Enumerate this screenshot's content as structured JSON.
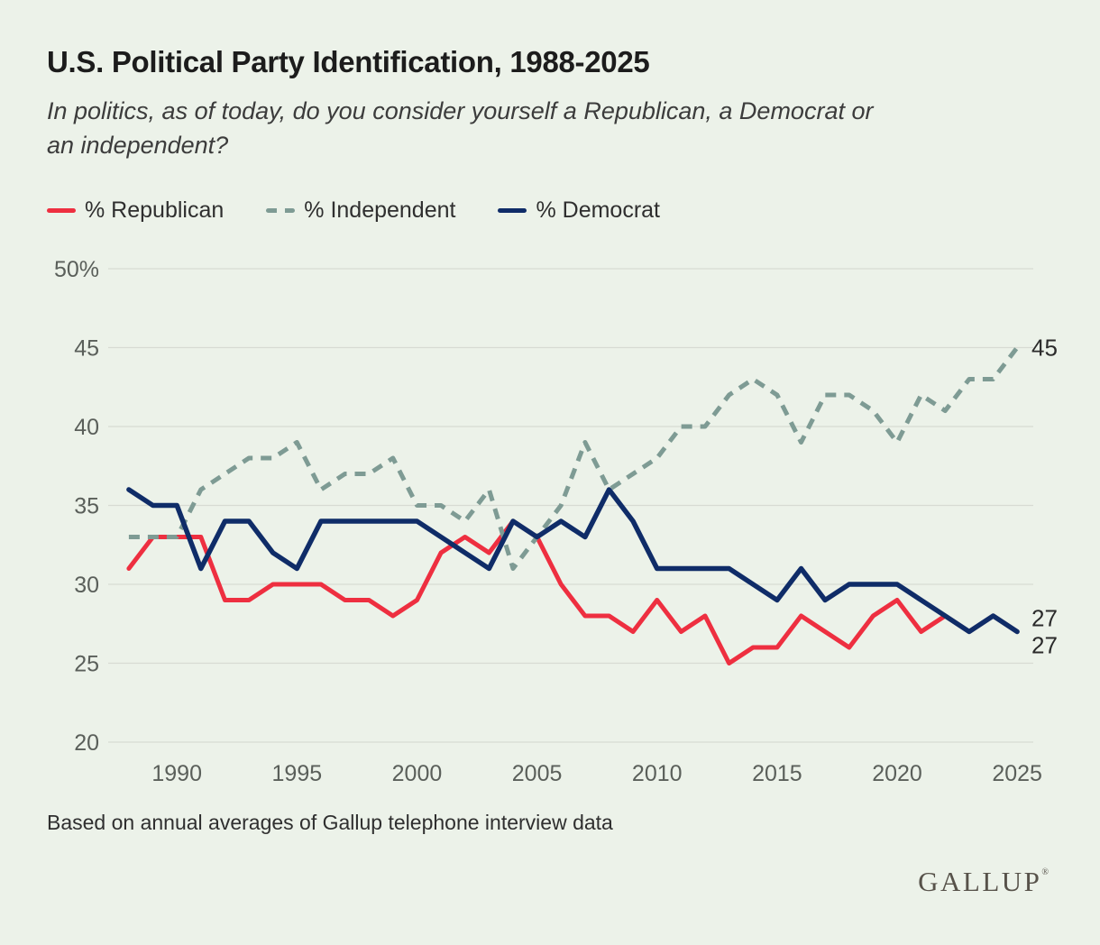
{
  "title": "U.S. Political Party Identification, 1988-2025",
  "subtitle_lines": [
    "In politics, as of today, do you consider yourself a Republican, a Democrat or",
    "an independent?"
  ],
  "legend": [
    {
      "id": "republican",
      "label": "% Republican",
      "style": "solid"
    },
    {
      "id": "independent",
      "label": "% Independent",
      "style": "dashed"
    },
    {
      "id": "democrat",
      "label": "% Democrat",
      "style": "solid"
    }
  ],
  "footer": "Based on annual averages of Gallup telephone interview data",
  "logo_text": "GALLUP",
  "logo_mark": "®",
  "colors": {
    "background": "#ecf2e9",
    "grid": "#d7dbd3",
    "tick_text": "#5a5f5a",
    "title_text": "#1c1c1c",
    "subtitle_text": "#3c3c3c",
    "legend_text": "#2f2f2f",
    "end_label_text": "#2b2b2b",
    "footer_text": "#2f2f2f",
    "logo_text": "#57524a",
    "republican": "#ee2f40",
    "independent": "#7e9b94",
    "democrat": "#0f2c68"
  },
  "chart_data": {
    "type": "line",
    "title": "U.S. Political Party Identification, 1988-2025",
    "xlabel": "",
    "ylabel": "%",
    "x": [
      1988,
      1989,
      1990,
      1991,
      1992,
      1993,
      1994,
      1995,
      1996,
      1997,
      1998,
      1999,
      2000,
      2001,
      2002,
      2003,
      2004,
      2005,
      2006,
      2007,
      2008,
      2009,
      2010,
      2011,
      2012,
      2013,
      2014,
      2015,
      2016,
      2017,
      2018,
      2019,
      2020,
      2021,
      2022,
      2023,
      2024,
      2025
    ],
    "series": [
      {
        "id": "republican",
        "name": "% Republican",
        "dash": null,
        "width": 5,
        "values": [
          31,
          33,
          33,
          33,
          29,
          29,
          30,
          30,
          30,
          29,
          29,
          28,
          29,
          32,
          33,
          32,
          34,
          33,
          30,
          28,
          28,
          27,
          29,
          27,
          28,
          25,
          26,
          26,
          28,
          27,
          26,
          28,
          29,
          27,
          28,
          27,
          28,
          27
        ],
        "end_label": "27",
        "end_label_dy": 15
      },
      {
        "id": "independent",
        "name": "% Independent",
        "dash": [
          12,
          9
        ],
        "width": 5,
        "values": [
          33,
          33,
          33,
          36,
          37,
          38,
          38,
          39,
          36,
          37,
          37,
          38,
          35,
          35,
          34,
          36,
          31,
          33,
          35,
          39,
          36,
          37,
          38,
          40,
          40,
          42,
          43,
          42,
          39,
          42,
          42,
          41,
          39,
          42,
          41,
          43,
          43,
          45
        ],
        "end_label": "45",
        "end_label_dy": 0
      },
      {
        "id": "democrat",
        "name": "% Democrat",
        "dash": null,
        "width": 5.5,
        "values": [
          36,
          35,
          35,
          31,
          34,
          34,
          32,
          31,
          34,
          34,
          34,
          34,
          34,
          33,
          32,
          31,
          34,
          33,
          34,
          33,
          36,
          34,
          31,
          31,
          31,
          31,
          30,
          29,
          31,
          29,
          30,
          30,
          30,
          29,
          28,
          27,
          28,
          27
        ],
        "end_label": "27",
        "end_label_dy": -15
      }
    ],
    "ylim": [
      20,
      50
    ],
    "y_ticks": [
      50,
      45,
      40,
      35,
      30,
      25,
      20
    ],
    "y_tick_labels": [
      "50%",
      "45",
      "40",
      "35",
      "30",
      "25",
      "20"
    ],
    "x_tick_years": [
      1990,
      1995,
      2000,
      2005,
      2010,
      2015,
      2020,
      2025
    ],
    "grid": true,
    "legend_position": "top"
  }
}
